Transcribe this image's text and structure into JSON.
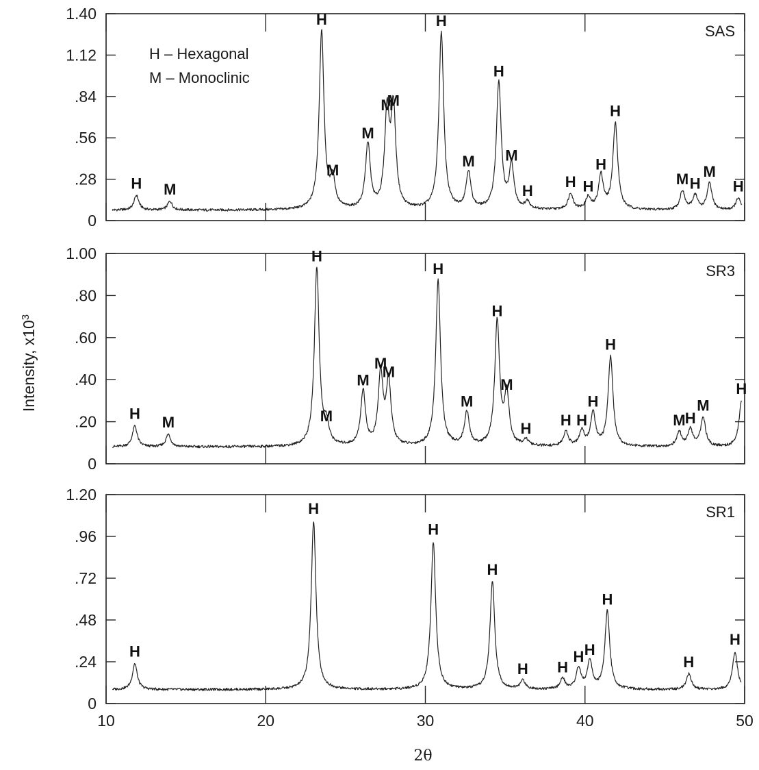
{
  "figure": {
    "ylabel_text": "Intensity, x10",
    "ylabel_exponent": "3",
    "xlabel": "2θ"
  },
  "legend": {
    "hexagonal": "H – Hexagonal",
    "monoclinic": "M – Monoclinic"
  },
  "chart_data": [
    {
      "type": "line",
      "title": "SAS",
      "xlim": [
        10,
        50
      ],
      "ylim": [
        0,
        1.4
      ],
      "y_ticks": [
        0,
        0.28,
        0.56,
        0.84,
        1.12,
        1.4
      ],
      "y_tick_labels": [
        "0",
        ".28",
        ".56",
        ".84",
        "1.12",
        "1.40"
      ],
      "x_ticks": [
        10,
        20,
        30,
        40,
        50
      ],
      "baseline": 0.07,
      "peaks": [
        {
          "x": 11.9,
          "y": 0.17,
          "label": "H"
        },
        {
          "x": 14.0,
          "y": 0.13,
          "label": "M"
        },
        {
          "x": 23.5,
          "y": 1.28,
          "label": "H"
        },
        {
          "x": 24.2,
          "y": 0.26,
          "label": "M"
        },
        {
          "x": 26.4,
          "y": 0.51,
          "label": "M"
        },
        {
          "x": 27.6,
          "y": 0.7,
          "label": "M"
        },
        {
          "x": 28.0,
          "y": 0.73,
          "label": "M"
        },
        {
          "x": 31.0,
          "y": 1.27,
          "label": "H"
        },
        {
          "x": 32.7,
          "y": 0.32,
          "label": "M"
        },
        {
          "x": 34.6,
          "y": 0.93,
          "label": "H"
        },
        {
          "x": 35.4,
          "y": 0.36,
          "label": "M"
        },
        {
          "x": 36.4,
          "y": 0.12,
          "label": "H"
        },
        {
          "x": 39.1,
          "y": 0.18,
          "label": "H"
        },
        {
          "x": 40.2,
          "y": 0.15,
          "label": "H"
        },
        {
          "x": 41.0,
          "y": 0.3,
          "label": "H"
        },
        {
          "x": 41.9,
          "y": 0.66,
          "label": "H"
        },
        {
          "x": 46.1,
          "y": 0.2,
          "label": "M"
        },
        {
          "x": 46.9,
          "y": 0.17,
          "label": "H"
        },
        {
          "x": 47.8,
          "y": 0.25,
          "label": "M"
        },
        {
          "x": 49.6,
          "y": 0.15,
          "label": "H"
        }
      ]
    },
    {
      "type": "line",
      "title": "SR3",
      "xlim": [
        10,
        50
      ],
      "ylim": [
        0,
        1.0
      ],
      "y_ticks": [
        0,
        0.2,
        0.4,
        0.6,
        0.8,
        1.0
      ],
      "y_tick_labels": [
        "0",
        ".20",
        ".40",
        ".60",
        ".80",
        "1.00"
      ],
      "x_ticks": [
        10,
        20,
        30,
        40,
        50
      ],
      "baseline": 0.08,
      "peaks": [
        {
          "x": 11.8,
          "y": 0.18,
          "label": "H"
        },
        {
          "x": 13.9,
          "y": 0.14,
          "label": "M"
        },
        {
          "x": 23.2,
          "y": 0.93,
          "label": "H"
        },
        {
          "x": 23.8,
          "y": 0.17,
          "label": "M"
        },
        {
          "x": 26.1,
          "y": 0.34,
          "label": "M"
        },
        {
          "x": 27.2,
          "y": 0.42,
          "label": "M"
        },
        {
          "x": 27.7,
          "y": 0.38,
          "label": "M"
        },
        {
          "x": 30.8,
          "y": 0.87,
          "label": "H"
        },
        {
          "x": 32.6,
          "y": 0.24,
          "label": "M"
        },
        {
          "x": 34.5,
          "y": 0.67,
          "label": "H"
        },
        {
          "x": 35.1,
          "y": 0.32,
          "label": "M"
        },
        {
          "x": 36.3,
          "y": 0.11,
          "label": "H"
        },
        {
          "x": 38.8,
          "y": 0.15,
          "label": "H"
        },
        {
          "x": 39.8,
          "y": 0.15,
          "label": "H"
        },
        {
          "x": 40.5,
          "y": 0.24,
          "label": "H"
        },
        {
          "x": 41.6,
          "y": 0.51,
          "label": "H"
        },
        {
          "x": 45.9,
          "y": 0.15,
          "label": "M"
        },
        {
          "x": 46.6,
          "y": 0.16,
          "label": "H"
        },
        {
          "x": 47.4,
          "y": 0.22,
          "label": "M"
        },
        {
          "x": 49.8,
          "y": 0.3,
          "label": "H"
        }
      ]
    },
    {
      "type": "line",
      "title": "SR1",
      "xlim": [
        10,
        50
      ],
      "ylim": [
        0,
        1.2
      ],
      "y_ticks": [
        0,
        0.24,
        0.48,
        0.72,
        0.96,
        1.2
      ],
      "y_tick_labels": [
        "0",
        ".24",
        ".48",
        ".72",
        ".96",
        "1.20"
      ],
      "x_ticks": [
        10,
        20,
        30,
        40,
        50
      ],
      "x_tick_labels": [
        "10",
        "20",
        "30",
        "40",
        "50"
      ],
      "baseline": 0.08,
      "peaks": [
        {
          "x": 11.8,
          "y": 0.23,
          "label": "H"
        },
        {
          "x": 23.0,
          "y": 1.05,
          "label": "H"
        },
        {
          "x": 30.5,
          "y": 0.93,
          "label": "H"
        },
        {
          "x": 34.2,
          "y": 0.7,
          "label": "H"
        },
        {
          "x": 36.1,
          "y": 0.13,
          "label": "H"
        },
        {
          "x": 38.6,
          "y": 0.14,
          "label": "H"
        },
        {
          "x": 39.6,
          "y": 0.2,
          "label": "H"
        },
        {
          "x": 40.3,
          "y": 0.24,
          "label": "H"
        },
        {
          "x": 41.4,
          "y": 0.53,
          "label": "H"
        },
        {
          "x": 46.5,
          "y": 0.17,
          "label": "H"
        },
        {
          "x": 49.4,
          "y": 0.3,
          "label": "H"
        }
      ]
    }
  ]
}
